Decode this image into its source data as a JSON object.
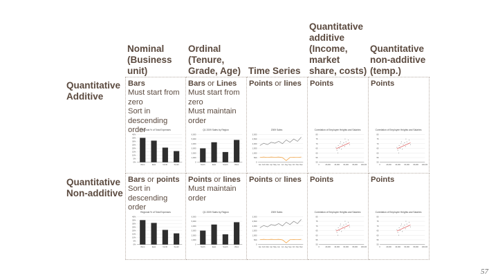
{
  "columns": [
    "Nominal\n(Business\nunit)",
    "Ordinal\n(Tenure,\nGrade, Age)",
    "Time Series",
    "Quantitative\nadditive\n(Income,\nmarket\nshare, costs)",
    "Quantitative\nnon-additive\n(temp.)"
  ],
  "rows": [
    {
      "label": "Quantitative\nAdditive",
      "cells": [
        {
          "bold1": "Bars",
          "sep": "",
          "bold2": "",
          "lines": [
            "Must start from",
            "zero",
            "Sort in",
            "descending order"
          ]
        },
        {
          "bold1": "Bars",
          "sep": " or ",
          "bold2": "Lines",
          "lines": [
            "Must start from",
            "zero",
            "Must maintain",
            "order"
          ]
        },
        {
          "bold1": "Points",
          "sep": " or ",
          "bold2": "lines",
          "lines": []
        },
        {
          "bold1": "Points",
          "sep": "",
          "bold2": "",
          "lines": []
        },
        {
          "bold1": "Points",
          "sep": "",
          "bold2": "",
          "lines": []
        }
      ]
    },
    {
      "label": "Quantitative\nNon-additive",
      "cells": [
        {
          "bold1": "Bars",
          "sep": " or ",
          "bold2": "points",
          "lines": [
            "Sort in",
            "descending order"
          ]
        },
        {
          "bold1": "Points",
          "sep": " or ",
          "bold2": "lines",
          "lines": [
            "Must maintain",
            "order"
          ]
        },
        {
          "bold1": "Points",
          "sep": " or ",
          "bold2": "lines",
          "lines": []
        },
        {
          "bold1": "Points",
          "sep": "",
          "bold2": "",
          "lines": []
        },
        {
          "bold1": "Points",
          "sep": "",
          "bold2": "",
          "lines": []
        }
      ]
    }
  ],
  "mini_charts": {
    "nominal": {
      "type": "bar",
      "title": "Regional % of Total Expenses",
      "categories": [
        "West",
        "East",
        "North",
        "South"
      ],
      "values": [
        35,
        31,
        21,
        16
      ],
      "yticks": [
        "40%",
        "35%",
        "30%",
        "25%",
        "20%",
        "15%",
        "10%",
        "5%",
        "0%"
      ],
      "ylim": [
        0,
        40
      ]
    },
    "ordinal": {
      "type": "bar",
      "title": "Q1 2009 Sales by Region",
      "categories": [
        "North",
        "East",
        "South",
        "West"
      ],
      "values": [
        3.0,
        4.3,
        2.2,
        4.8
      ],
      "yticks": [
        "6,000",
        "5,000",
        "4,000",
        "3,000",
        "2,000",
        "1,000",
        "0"
      ],
      "ylim": [
        0,
        6
      ]
    },
    "timeseries": {
      "type": "line",
      "title": "2009 Sales",
      "x": [
        "Jan",
        "Feb",
        "Mar",
        "Apr",
        "May",
        "Jun",
        "Jul",
        "Aug",
        "Sep",
        "Oct",
        "Nov",
        "Dec"
      ],
      "series": [
        {
          "values": [
            1800,
            2050,
            1900,
            2150,
            2050,
            2250,
            2000,
            2400,
            2150,
            2500,
            2250,
            2700
          ],
          "color": "#8a8a8a"
        },
        {
          "values": [
            520,
            560,
            520,
            560,
            540,
            560,
            500,
            180,
            520,
            540,
            520,
            560
          ],
          "color": "#f39c34"
        }
      ],
      "yticks": [
        "3,000",
        "2,500",
        "2,000",
        "1,500",
        "1,000",
        "500",
        "0"
      ],
      "ylim": [
        0,
        3000
      ]
    },
    "scatter": {
      "type": "scatter",
      "title": "Correlation of Employee Heights and Salaries",
      "xticks": [
        "0",
        "20,000",
        "40,000",
        "60,000",
        "80,000",
        "100,000"
      ],
      "yticks": [
        "80",
        "75",
        "70",
        "65",
        "60",
        "55",
        "50"
      ],
      "xlim": [
        0,
        100000
      ],
      "ylim": [
        50,
        80
      ],
      "points": [
        [
          38000,
          66
        ],
        [
          40000,
          63
        ],
        [
          43000,
          68
        ],
        [
          45000,
          65
        ],
        [
          47000,
          70
        ],
        [
          50000,
          64
        ],
        [
          52000,
          69
        ],
        [
          55000,
          71
        ],
        [
          57000,
          67
        ],
        [
          60000,
          72
        ],
        [
          63000,
          70
        ],
        [
          65000,
          74
        ],
        [
          68000,
          69
        ],
        [
          42000,
          60
        ],
        [
          58000,
          75
        ],
        [
          48000,
          72
        ]
      ],
      "trend": [
        [
          38000,
          64.5
        ],
        [
          68000,
          71
        ]
      ],
      "trend_color": "#e05a5a"
    }
  }
}
